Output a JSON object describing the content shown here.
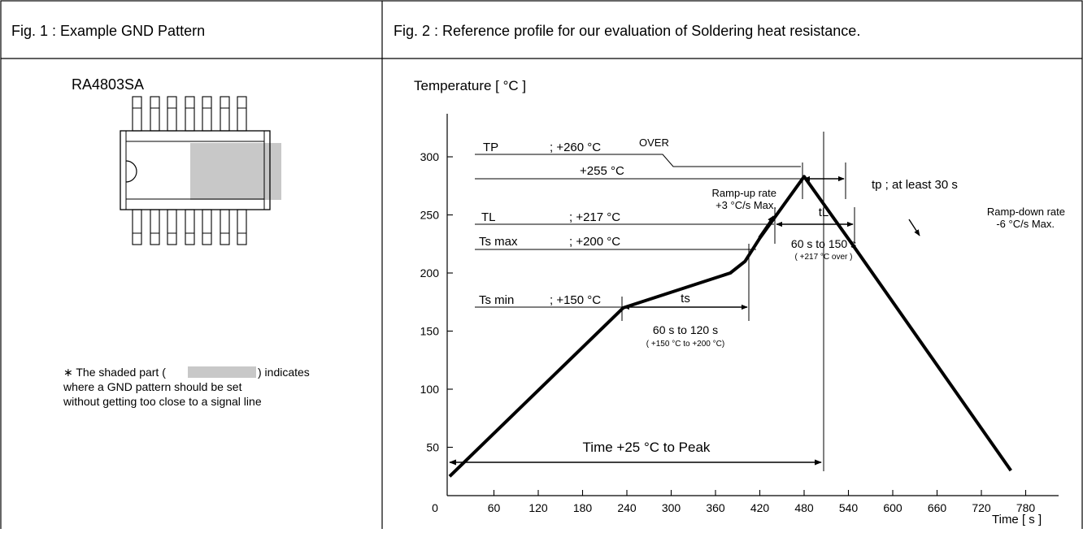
{
  "fig1": {
    "title": "Fig. 1 : Example GND Pattern",
    "part_name": "RA4803SA",
    "note_line1_a": "∗ The shaded part (",
    "note_line1_b": ") indicates",
    "note_line2": "where a GND pattern should be set",
    "note_line3": "without getting too close to a signal line",
    "shade_color": "#c8c8c8"
  },
  "fig2": {
    "title": "Fig. 2 : Reference profile for our evaluation of Soldering heat resistance.",
    "y_axis_title": "Temperature [ °C ]",
    "x_axis_title": "Time [ s ]",
    "y_ticks": [
      "50",
      "100",
      "150",
      "200",
      "250",
      "300"
    ],
    "x_ticks": [
      "0",
      "60",
      "120",
      "180",
      "240",
      "300",
      "360",
      "420",
      "480",
      "540",
      "600",
      "660",
      "720",
      "780"
    ],
    "tp_label": "TP",
    "tp_value": "; +260 °C",
    "tp_over": "OVER",
    "t255_value": "+255 °C",
    "tl_label": "TL",
    "tl_value": "; +217 °C",
    "tsmax_label": "Ts max",
    "tsmax_value": "; +200 °C",
    "tsmin_label": "Ts min",
    "tsmin_value": "; +150 °C",
    "ts_label": "ts",
    "ts_range": "60 s  to  120 s",
    "ts_range_note": "( +150 °C to +200 °C)",
    "tl_span_label": "tL",
    "tl_range": "60 s  to  150 s",
    "tl_range_note": "( +217 °C  over )",
    "tp_time_label": "tp ; at least 30 s",
    "ramp_up_1": "Ramp-up rate",
    "ramp_up_2": "+3 °C/s Max.",
    "ramp_down_1": "Ramp-down rate",
    "ramp_down_2": "-6 °C/s Max.",
    "time_to_peak": "Time +25 °C to Peak"
  },
  "chart_data": {
    "type": "line",
    "x_unit": "s",
    "y_unit": "°C",
    "xlim": [
      0,
      780
    ],
    "ylim": [
      0,
      300
    ],
    "series": [
      {
        "x": [
          0,
          235,
          380,
          400,
          420,
          480,
          545,
          760
        ],
        "y": [
          25,
          170,
          200,
          210,
          230,
          283,
          225,
          30
        ]
      }
    ],
    "reference_levels": {
      "TP": 260,
      "peak_255": 255,
      "TL": 217,
      "Ts_max": 200,
      "Ts_min": 150
    },
    "spans": {
      "ts": [
        200,
        380
      ],
      "tL": [
        420,
        555
      ],
      "tp": [
        450,
        510
      ],
      "time_25_to_peak": [
        0,
        480
      ]
    }
  }
}
